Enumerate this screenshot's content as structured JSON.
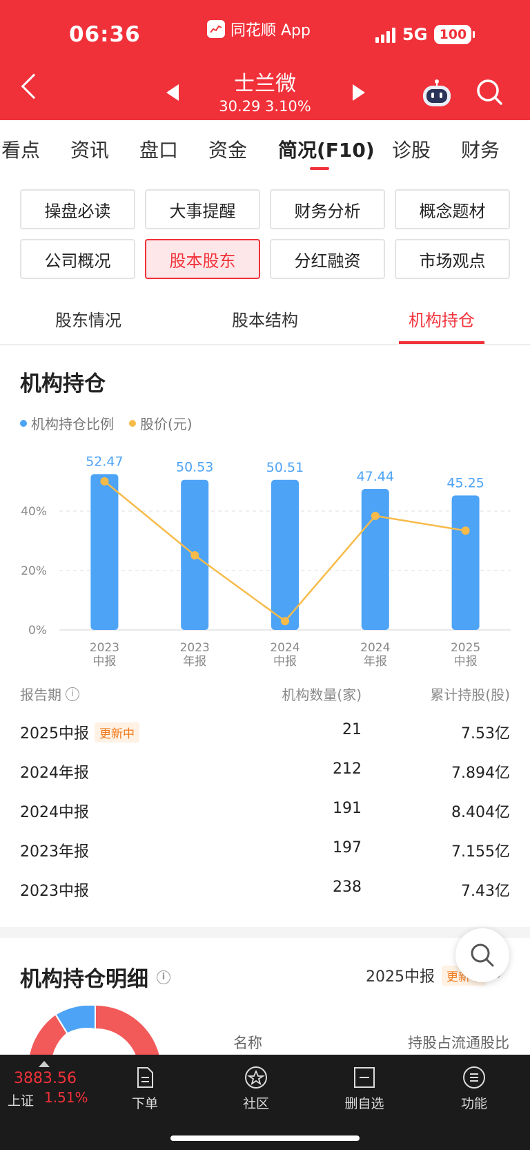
{
  "status_bar": {
    "time": "06:36",
    "app_label": "同花顺 App",
    "network": "5G",
    "battery": "100"
  },
  "header": {
    "stock_name": "士兰微",
    "price_change": "30.29 3.10%"
  },
  "tabs": [
    {
      "label": "看点",
      "active": false
    },
    {
      "label": "资讯",
      "active": false
    },
    {
      "label": "盘口",
      "active": false
    },
    {
      "label": "资金",
      "active": false
    },
    {
      "label": "简况(F10)",
      "active": true
    },
    {
      "label": "诊股",
      "active": false
    },
    {
      "label": "财务",
      "active": false
    }
  ],
  "f10_buttons": [
    {
      "label": "操盘必读",
      "active": false
    },
    {
      "label": "大事提醒",
      "active": false
    },
    {
      "label": "财务分析",
      "active": false
    },
    {
      "label": "概念题材",
      "active": false
    },
    {
      "label": "公司概况",
      "active": false
    },
    {
      "label": "股本股东",
      "active": true
    },
    {
      "label": "分红融资",
      "active": false
    },
    {
      "label": "市场观点",
      "active": false
    }
  ],
  "subtabs": [
    {
      "label": "股东情况",
      "active": false
    },
    {
      "label": "股本结构",
      "active": false
    },
    {
      "label": "机构持仓",
      "active": true
    }
  ],
  "section": {
    "title": "机构持仓"
  },
  "legend": [
    {
      "label": "机构持仓比例",
      "color": "#4da3f6"
    },
    {
      "label": "股价(元)",
      "color": "#f7bb4a"
    }
  ],
  "chart_data": {
    "type": "bar",
    "categories": [
      [
        "2023",
        "中报"
      ],
      [
        "2023",
        "年报"
      ],
      [
        "2024",
        "中报"
      ],
      [
        "2024",
        "年报"
      ],
      [
        "2025",
        "中报"
      ]
    ],
    "series": [
      {
        "name": "机构持仓比例",
        "type": "bar",
        "values": [
          52.47,
          50.53,
          50.51,
          47.44,
          45.25
        ],
        "color": "#4da3f6"
      },
      {
        "name": "股价(元)",
        "type": "line",
        "relative_level": [
          0.95,
          0.5,
          0.1,
          0.74,
          0.65
        ],
        "color": "#f7bb4a"
      }
    ],
    "y_ticks": [
      "0%",
      "20%",
      "40%"
    ],
    "ylim": [
      0,
      60
    ],
    "grid": true
  },
  "table": {
    "headers": {
      "period": "报告期",
      "count": "机构数量(家)",
      "shares": "累计持股(股)"
    },
    "rows": [
      {
        "period": "2025中报",
        "badge": "更新中",
        "count": "21",
        "shares": "7.53亿"
      },
      {
        "period": "2024年报",
        "badge": "",
        "count": "212",
        "shares": "7.894亿"
      },
      {
        "period": "2024中报",
        "badge": "",
        "count": "191",
        "shares": "8.404亿"
      },
      {
        "period": "2023年报",
        "badge": "",
        "count": "197",
        "shares": "7.155亿"
      },
      {
        "period": "2023中报",
        "badge": "",
        "count": "238",
        "shares": "7.43亿"
      }
    ]
  },
  "detail": {
    "title": "机构持仓明细",
    "period": "2025中报",
    "badge": "更新中",
    "col_name": "名称",
    "col_ratio": "持股占流通股比"
  },
  "bottom_bar": {
    "index_value": "3883.56",
    "index_name": "上证",
    "index_change": "1.51%",
    "items": [
      {
        "label": "下单",
        "icon": "order-icon"
      },
      {
        "label": "社区",
        "icon": "community-icon"
      },
      {
        "label": "删自选",
        "icon": "remove-favorite-icon"
      },
      {
        "label": "功能",
        "icon": "menu-icon"
      }
    ]
  }
}
